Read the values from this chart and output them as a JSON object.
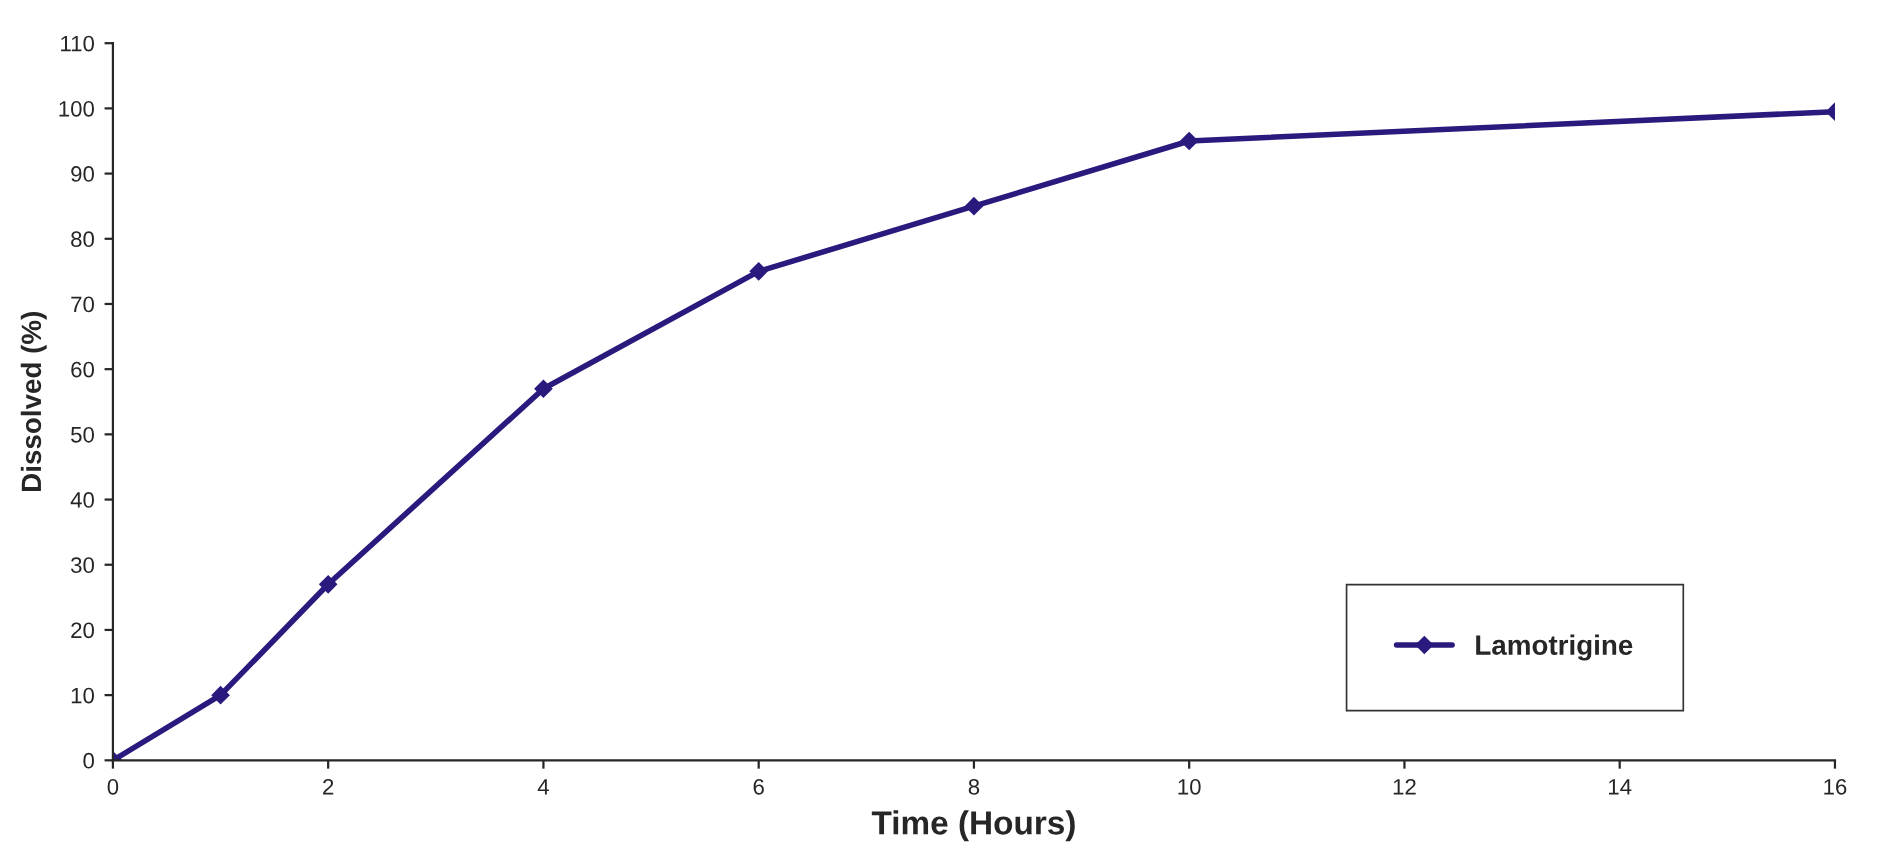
{
  "chart_data": {
    "type": "line",
    "xlabel": "Time (Hours)",
    "ylabel": "Dissolved (%)",
    "x": [
      0,
      1,
      2,
      4,
      6,
      8,
      10,
      16
    ],
    "series": [
      {
        "name": "Lamotrigine",
        "color": "#2b1a7e",
        "values": [
          0,
          10,
          27,
          57,
          75,
          85,
          95,
          99.5
        ]
      }
    ],
    "xlim": [
      0,
      16
    ],
    "xticks": [
      0,
      2,
      4,
      6,
      8,
      10,
      12,
      14,
      16
    ],
    "ylim": [
      0,
      110
    ],
    "yticks": [
      0,
      10,
      20,
      30,
      40,
      50,
      60,
      70,
      80,
      90,
      100,
      110
    ],
    "grid": false,
    "legend": "bottom right",
    "marker": "diamond",
    "line_style": "solid"
  }
}
